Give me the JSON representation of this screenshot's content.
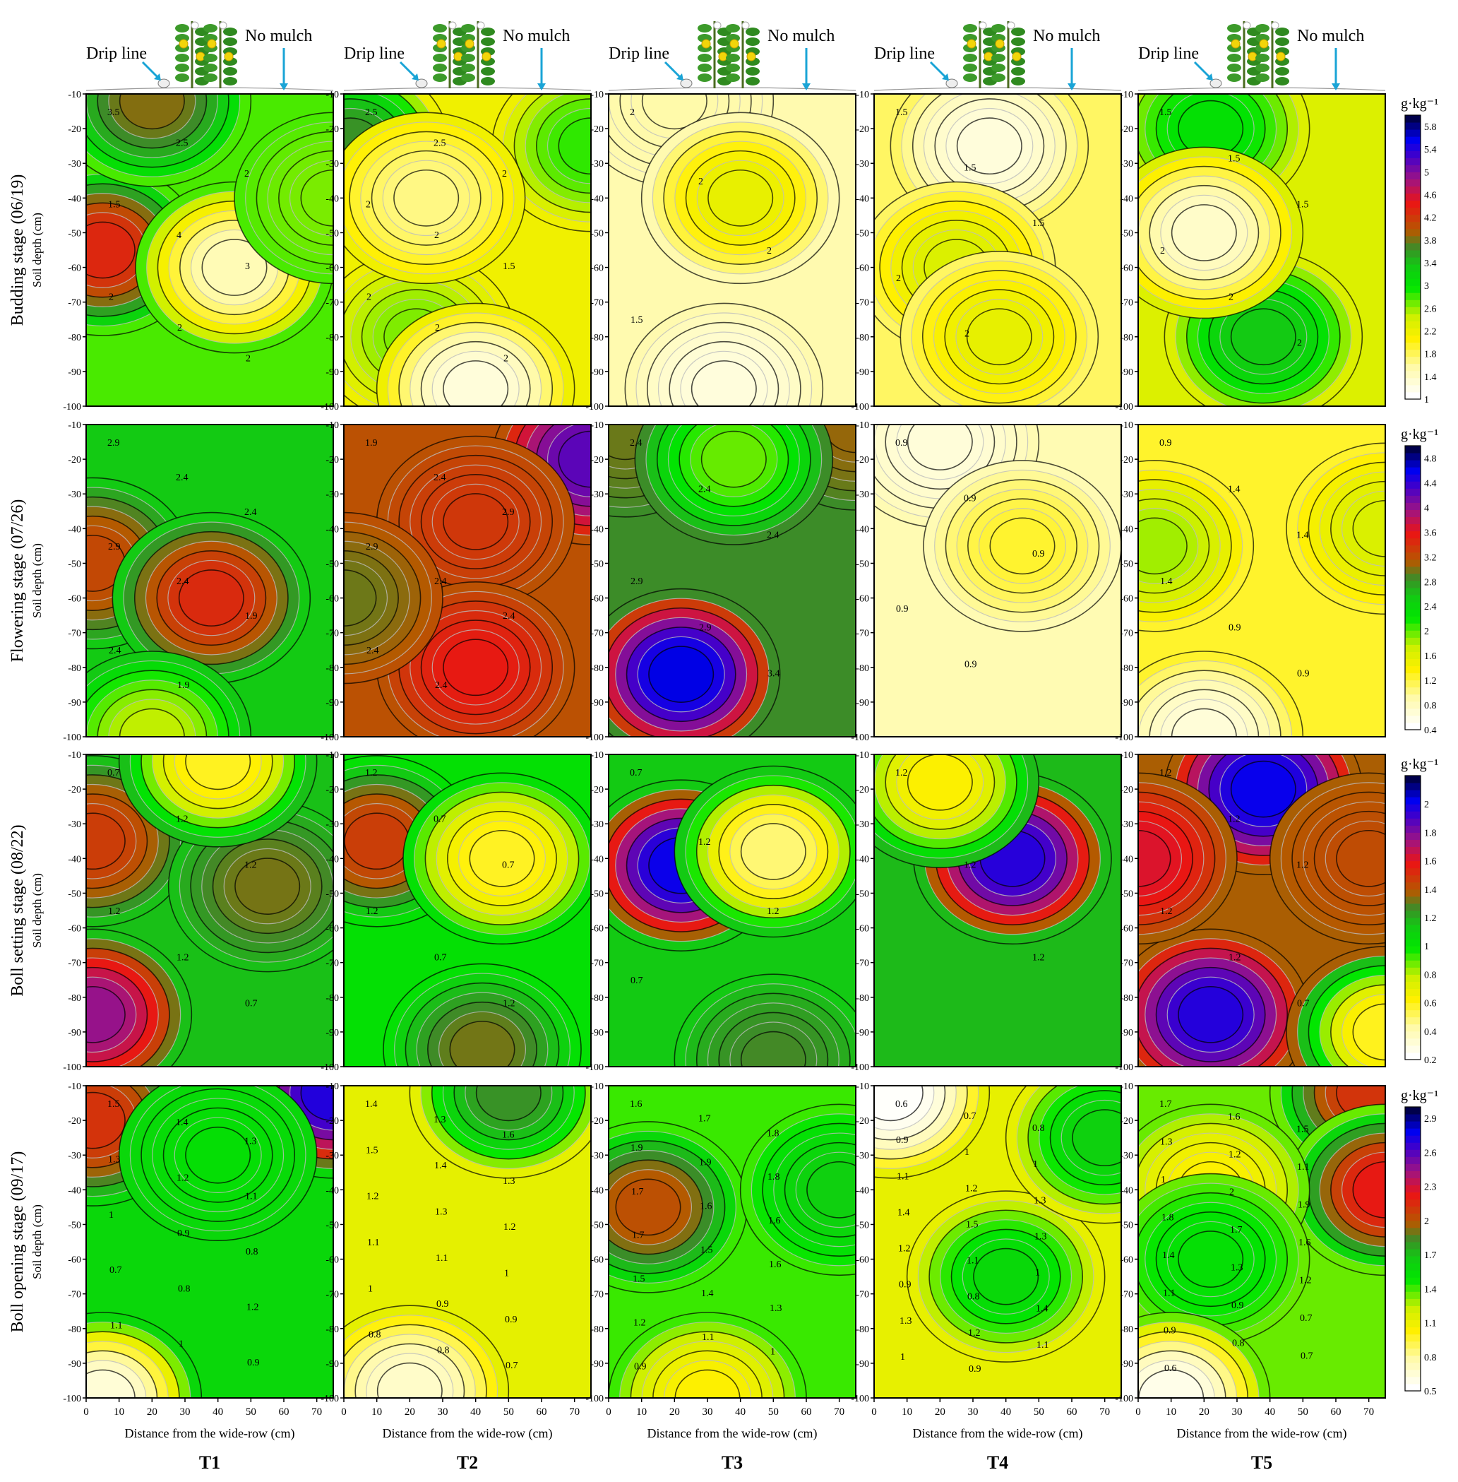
{
  "figure": {
    "x_axis_label": "Distance from the wide-row (cm)",
    "y_axis_label": "Soil depth (cm)",
    "x_ticks": [
      0,
      10,
      20,
      30,
      40,
      50,
      60,
      70
    ],
    "y_ticks": [
      -10,
      -20,
      -30,
      -40,
      -50,
      -60,
      -70,
      -80,
      -90,
      -100
    ],
    "header_labels": {
      "drip": "Drip line",
      "mulch": "No mulch"
    },
    "treatments": [
      "T1",
      "T2",
      "T3",
      "T4",
      "T5"
    ],
    "unit": "g·kg⁻¹"
  },
  "chart_data": {
    "type": "heatmap",
    "xlabel": "Distance from the wide-row (cm)",
    "ylabel": "Soil depth (cm)",
    "xlim": [
      0,
      75
    ],
    "ylim": [
      -100,
      -10
    ],
    "columns": [
      "T1",
      "T2",
      "T3",
      "T4",
      "T5"
    ],
    "rows": [
      {
        "stage": "Budding stage (06/19)",
        "colorbar": {
          "min": 1.0,
          "max": 6.0,
          "ticks": [
            1,
            1.4,
            1.8,
            2.2,
            2.6,
            3,
            3.4,
            3.8,
            4.2,
            4.6,
            5,
            5.4,
            5.8
          ]
        },
        "panels": [
          {
            "contour_labels": [
              3.5,
              2.5,
              2,
              1.5,
              4,
              3,
              2,
              2,
              2
            ],
            "peaks": [
              {
                "x": 5,
                "y": -55,
                "v": 4.3
              },
              {
                "x": 20,
                "y": -12,
                "v": 3.8
              },
              {
                "x": 45,
                "y": -60,
                "v": 1.4
              },
              {
                "x": 75,
                "y": -40,
                "v": 2.6
              }
            ]
          },
          {
            "contour_labels": [
              2.5,
              2.5,
              2,
              2,
              2,
              1.5,
              2,
              2,
              2
            ],
            "peaks": [
              {
                "x": 2,
                "y": -25,
                "v": 3.6
              },
              {
                "x": 22,
                "y": -80,
                "v": 2.6
              },
              {
                "x": 40,
                "y": -95,
                "v": 1.2
              },
              {
                "x": 75,
                "y": -25,
                "v": 2.8
              },
              {
                "x": 25,
                "y": -40,
                "v": 1.6
              }
            ]
          },
          {
            "contour_labels": [
              2,
              2,
              2,
              1.5
            ],
            "peaks": [
              {
                "x": 20,
                "y": -12,
                "v": 1.5
              },
              {
                "x": 40,
                "y": -40,
                "v": 2.2
              },
              {
                "x": 35,
                "y": -95,
                "v": 1.2
              }
            ]
          },
          {
            "contour_labels": [
              1.5,
              1.5,
              1.5,
              2,
              2
            ],
            "peaks": [
              {
                "x": 35,
                "y": -25,
                "v": 1.2
              },
              {
                "x": 25,
                "y": -60,
                "v": 2.3
              },
              {
                "x": 38,
                "y": -80,
                "v": 2.2
              }
            ]
          },
          {
            "contour_labels": [
              1.5,
              1.5,
              1.5,
              2,
              2,
              2
            ],
            "peaks": [
              {
                "x": 22,
                "y": -20,
                "v": 3.0
              },
              {
                "x": 38,
                "y": -80,
                "v": 3.3
              },
              {
                "x": 20,
                "y": -50,
                "v": 1.3
              }
            ]
          }
        ]
      },
      {
        "stage": "Flowering stage (07/26)",
        "colorbar": {
          "min": 0.4,
          "max": 5.0,
          "ticks": [
            0.4,
            0.8,
            1.2,
            1.6,
            2,
            2.4,
            2.8,
            3.2,
            3.6,
            4,
            4.4,
            4.8
          ]
        },
        "panels": [
          {
            "contour_labels": [
              2.9,
              2.4,
              2.4,
              2.9,
              2.4,
              1.9,
              2.4,
              1.9
            ],
            "peaks": [
              {
                "x": 2,
                "y": -50,
                "v": 3.2
              },
              {
                "x": 38,
                "y": -60,
                "v": 3.4
              },
              {
                "x": 20,
                "y": -100,
                "v": 1.7
              }
            ]
          },
          {
            "contour_labels": [
              1.9,
              2.4,
              2.9,
              2.9,
              2.4,
              2.4,
              2.4,
              2.4
            ],
            "peaks": [
              {
                "x": 75,
                "y": -20,
                "v": 4.2
              },
              {
                "x": 40,
                "y": -38,
                "v": 3.3
              },
              {
                "x": 40,
                "y": -80,
                "v": 3.5
              },
              {
                "x": 0,
                "y": -60,
                "v": 2.9
              }
            ]
          },
          {
            "contour_labels": [
              2.4,
              2.4,
              2.4,
              2.9,
              2.9,
              3.4
            ],
            "peaks": [
              {
                "x": 22,
                "y": -82,
                "v": 4.6
              },
              {
                "x": 5,
                "y": -12,
                "v": 2.9
              },
              {
                "x": 75,
                "y": -10,
                "v": 3.0
              },
              {
                "x": 38,
                "y": -20,
                "v": 1.9
              }
            ]
          },
          {
            "contour_labels": [
              0.9,
              0.9,
              0.9,
              0.9,
              0.9
            ],
            "peaks": [
              {
                "x": 20,
                "y": -15,
                "v": 0.6
              },
              {
                "x": 45,
                "y": -45,
                "v": 1.2
              }
            ]
          },
          {
            "contour_labels": [
              0.9,
              1.4,
              1.4,
              1.4,
              0.9,
              0.9
            ],
            "peaks": [
              {
                "x": 5,
                "y": -45,
                "v": 1.8
              },
              {
                "x": 75,
                "y": -40,
                "v": 1.6
              },
              {
                "x": 20,
                "y": -100,
                "v": 0.6
              }
            ]
          }
        ]
      },
      {
        "stage": "Boll setting stage (08/22)",
        "colorbar": {
          "min": 0.2,
          "max": 2.2,
          "ticks": [
            0.2,
            0.4,
            0.6,
            0.8,
            1,
            1.2,
            1.4,
            1.6,
            1.8,
            2
          ]
        },
        "panels": [
          {
            "contour_labels": [
              0.7,
              1.2,
              1.2,
              1.2,
              1.2,
              0.7
            ],
            "peaks": [
              {
                "x": 2,
                "y": -35,
                "v": 1.45
              },
              {
                "x": 2,
                "y": -85,
                "v": 1.75
              },
              {
                "x": 55,
                "y": -48,
                "v": 1.3
              },
              {
                "x": 40,
                "y": -12,
                "v": 0.55
              }
            ]
          },
          {
            "contour_labels": [
              1.2,
              0.7,
              0.7,
              1.2,
              0.7,
              1.2
            ],
            "peaks": [
              {
                "x": 10,
                "y": -35,
                "v": 1.45
              },
              {
                "x": 48,
                "y": -40,
                "v": 0.55
              },
              {
                "x": 42,
                "y": -95,
                "v": 1.3
              }
            ]
          },
          {
            "contour_labels": [
              0.7,
              1.2,
              1.2,
              0.7
            ],
            "peaks": [
              {
                "x": 22,
                "y": -42,
                "v": 2.0
              },
              {
                "x": 50,
                "y": -38,
                "v": 0.45
              },
              {
                "x": 50,
                "y": -98,
                "v": 1.25
              }
            ]
          },
          {
            "contour_labels": [
              1.2,
              1.2,
              1.2
            ],
            "peaks": [
              {
                "x": 42,
                "y": -40,
                "v": 1.95
              },
              {
                "x": 20,
                "y": -18,
                "v": 0.6
              }
            ]
          },
          {
            "contour_labels": [
              1.2,
              1.2,
              1.2,
              1.2,
              1.2,
              0.7
            ],
            "peaks": [
              {
                "x": 38,
                "y": -20,
                "v": 2.0
              },
              {
                "x": 22,
                "y": -85,
                "v": 1.95
              },
              {
                "x": 70,
                "y": -40,
                "v": 1.4
              },
              {
                "x": 0,
                "y": -40,
                "v": 1.6
              },
              {
                "x": 75,
                "y": -90,
                "v": 0.55
              }
            ]
          }
        ]
      },
      {
        "stage": "Boll opening stage (09/17)",
        "colorbar": {
          "min": 0.5,
          "max": 3.0,
          "ticks": [
            0.5,
            0.8,
            1.1,
            1.4,
            1.7,
            2,
            2.3,
            2.6,
            2.9
          ]
        },
        "panels": [
          {
            "contour_labels": [
              1.5,
              1.4,
              1.3,
              1.3,
              1.2,
              1.1,
              1,
              0.9,
              0.8,
              0.7,
              0.8,
              1.2,
              1.1,
              1,
              0.9
            ],
            "peaks": [
              {
                "x": 2,
                "y": -20,
                "v": 2.1
              },
              {
                "x": 75,
                "y": -12,
                "v": 2.7
              },
              {
                "x": 40,
                "y": -30,
                "v": 1.5
              },
              {
                "x": 5,
                "y": -100,
                "v": 0.6
              }
            ]
          },
          {
            "contour_labels": [
              1.4,
              1.3,
              1.6,
              1.5,
              1.4,
              1.3,
              1.2,
              1.3,
              1.2,
              1.1,
              1.1,
              1,
              1,
              0.9,
              0.9,
              0.8,
              0.8,
              0.7
            ],
            "peaks": [
              {
                "x": 50,
                "y": -12,
                "v": 1.8
              },
              {
                "x": 20,
                "y": -98,
                "v": 0.65
              }
            ]
          },
          {
            "contour_labels": [
              1.6,
              1.7,
              1.8,
              1.9,
              1.9,
              1.8,
              1.7,
              1.6,
              1.6,
              1.7,
              1.5,
              1.6,
              1.5,
              1.4,
              1.3,
              1.2,
              1.1,
              1,
              0.9
            ],
            "peaks": [
              {
                "x": 12,
                "y": -45,
                "v": 2.0
              },
              {
                "x": 70,
                "y": -40,
                "v": 1.6
              },
              {
                "x": 30,
                "y": -100,
                "v": 1.0
              }
            ]
          },
          {
            "contour_labels": [
              0.6,
              0.7,
              0.8,
              0.9,
              1,
              1,
              1.1,
              1.2,
              1.3,
              1.4,
              1.5,
              1.3,
              1.2,
              1.1,
              1,
              0.9,
              0.8,
              1.4,
              1.3,
              1.2,
              1.1,
              1,
              0.9
            ],
            "peaks": [
              {
                "x": 5,
                "y": -12,
                "v": 0.5
              },
              {
                "x": 40,
                "y": -65,
                "v": 1.55
              },
              {
                "x": 70,
                "y": -25,
                "v": 1.6
              }
            ]
          },
          {
            "contour_labels": [
              1.7,
              1.6,
              1.5,
              1.3,
              1.2,
              1.1,
              1,
              2,
              1.9,
              1.8,
              1.7,
              1.6,
              1.4,
              1.3,
              1.2,
              1.1,
              0.9,
              0.7,
              0.9,
              0.8,
              0.7,
              0.6
            ],
            "peaks": [
              {
                "x": 70,
                "y": -12,
                "v": 2.1
              },
              {
                "x": 75,
                "y": -40,
                "v": 2.2
              },
              {
                "x": 22,
                "y": -40,
                "v": 1.0
              },
              {
                "x": 22,
                "y": -60,
                "v": 1.5
              },
              {
                "x": 10,
                "y": -100,
                "v": 0.55
              }
            ]
          }
        ]
      }
    ]
  }
}
